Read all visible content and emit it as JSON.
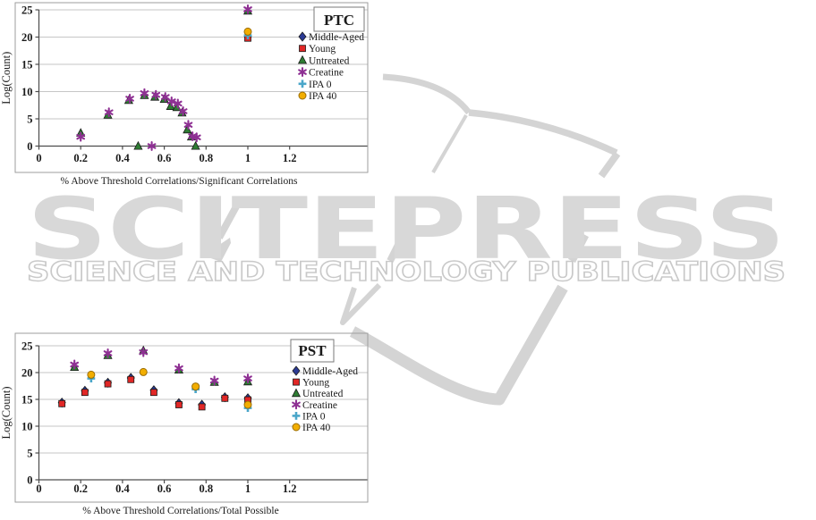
{
  "watermark": {
    "brand": "SCITEPRESS",
    "tagline": "SCIENCE AND TECHNOLOGY PUBLICATIONS",
    "big_text_color": "#d8d8d8",
    "outline_text_color": "#c9c9c9",
    "swoosh_color": "#d4d4d4"
  },
  "chart_data": [
    {
      "type": "scatter",
      "title": "PTC",
      "xlabel": "% Above Threshold Correlations/Significant Correlations",
      "ylabel": "Log(Count)",
      "xlim": [
        0,
        1.3
      ],
      "ylim": [
        0,
        25
      ],
      "xticks": [
        0,
        0.2,
        0.4,
        0.6,
        0.8,
        1,
        1.2
      ],
      "xtick_labels": [
        "0",
        "0.2",
        "0.4",
        "0.6",
        "0.8",
        "1",
        "1.2"
      ],
      "yticks": [
        0,
        5,
        10,
        15,
        20,
        25
      ],
      "ytick_labels": [
        "0",
        "5",
        "10",
        "15",
        "20",
        "25"
      ],
      "grid": "horizontal",
      "legend_position": "right-inside",
      "series": [
        {
          "name": "Middle-Aged",
          "marker": "diamond",
          "color": "#2b3a94",
          "points": [
            [
              1,
              20.1
            ]
          ]
        },
        {
          "name": "Young",
          "marker": "square",
          "color": "#e12726",
          "points": [
            [
              1,
              19.8
            ]
          ]
        },
        {
          "name": "Untreated",
          "marker": "triangle",
          "color": "#2e7d33",
          "points": [
            [
              0.2,
              2.4
            ],
            [
              0.33,
              5.7
            ],
            [
              0.43,
              8.4
            ],
            [
              0.475,
              0
            ],
            [
              0.505,
              9.3
            ],
            [
              0.555,
              9.0
            ],
            [
              0.6,
              8.6
            ],
            [
              0.63,
              7.3
            ],
            [
              0.66,
              7.1
            ],
            [
              0.685,
              6.1
            ],
            [
              0.71,
              3.0
            ],
            [
              0.73,
              1.7
            ],
            [
              0.75,
              0
            ],
            [
              1,
              24.8
            ]
          ]
        },
        {
          "name": "Creatine",
          "marker": "asterisk",
          "color": "#8e3093",
          "points": [
            [
              0.2,
              1.7
            ],
            [
              0.335,
              6.2
            ],
            [
              0.435,
              8.7
            ],
            [
              0.505,
              9.7
            ],
            [
              0.54,
              0
            ],
            [
              0.56,
              9.4
            ],
            [
              0.605,
              9.0
            ],
            [
              0.635,
              8.2
            ],
            [
              0.665,
              7.8
            ],
            [
              0.69,
              6.4
            ],
            [
              0.715,
              3.9
            ],
            [
              0.735,
              1.8
            ],
            [
              0.755,
              1.6
            ],
            [
              1,
              25.1
            ]
          ]
        },
        {
          "name": "IPA 0",
          "marker": "plus",
          "color": "#4aa6c9",
          "points": [
            [
              1,
              20.3
            ]
          ]
        },
        {
          "name": "IPA 40",
          "marker": "circle",
          "color": "#f2ae00",
          "points": [
            [
              1,
              21.0
            ]
          ]
        }
      ]
    },
    {
      "type": "scatter",
      "title": "PST",
      "xlabel": "% Above Threshold Correlations/Total Possible",
      "ylabel": "Log(Count)",
      "xlim": [
        0,
        1.3
      ],
      "ylim": [
        0,
        25
      ],
      "xticks": [
        0,
        0.2,
        0.4,
        0.6,
        0.8,
        1,
        1.2
      ],
      "xtick_labels": [
        "0",
        "0.2",
        "0.4",
        "0.6",
        "0.8",
        "1",
        "1.2"
      ],
      "yticks": [
        0,
        5,
        10,
        15,
        20,
        25
      ],
      "ytick_labels": [
        "0",
        "5",
        "10",
        "15",
        "20",
        "25"
      ],
      "grid": "horizontal",
      "legend_position": "right-inside",
      "series": [
        {
          "name": "Middle-Aged",
          "marker": "diamond",
          "color": "#2b3a94",
          "points": [
            [
              0.11,
              14.4
            ],
            [
              0.22,
              16.6
            ],
            [
              0.33,
              18.1
            ],
            [
              0.44,
              19.0
            ],
            [
              0.55,
              16.7
            ],
            [
              0.67,
              14.3
            ],
            [
              0.78,
              14.0
            ],
            [
              0.89,
              15.4
            ],
            [
              1,
              15.2
            ]
          ]
        },
        {
          "name": "Young",
          "marker": "square",
          "color": "#e12726",
          "points": [
            [
              0.11,
              14.2
            ],
            [
              0.22,
              16.3
            ],
            [
              0.33,
              17.9
            ],
            [
              0.44,
              18.7
            ],
            [
              0.55,
              16.3
            ],
            [
              0.67,
              14.0
            ],
            [
              0.78,
              13.6
            ],
            [
              0.89,
              15.2
            ],
            [
              1,
              14.9
            ]
          ]
        },
        {
          "name": "Untreated",
          "marker": "triangle",
          "color": "#2e7d33",
          "points": [
            [
              0.17,
              21.0
            ],
            [
              0.33,
              23.2
            ],
            [
              0.5,
              24.1
            ],
            [
              0.67,
              20.5
            ],
            [
              0.84,
              18.2
            ],
            [
              1,
              18.3
            ]
          ]
        },
        {
          "name": "Creatine",
          "marker": "asterisk",
          "color": "#8e3093",
          "points": [
            [
              0.17,
              21.5
            ],
            [
              0.33,
              23.6
            ],
            [
              0.5,
              23.8
            ],
            [
              0.67,
              20.8
            ],
            [
              0.84,
              18.5
            ],
            [
              1,
              18.9
            ]
          ]
        },
        {
          "name": "IPA 0",
          "marker": "plus",
          "color": "#4aa6c9",
          "points": [
            [
              0.25,
              18.9
            ],
            [
              0.75,
              16.9
            ],
            [
              1,
              13.4
            ]
          ]
        },
        {
          "name": "IPA 40",
          "marker": "circle",
          "color": "#f2ae00",
          "points": [
            [
              0.25,
              19.6
            ],
            [
              0.5,
              20.1
            ],
            [
              0.75,
              17.4
            ],
            [
              1,
              14.0
            ]
          ]
        }
      ]
    }
  ]
}
